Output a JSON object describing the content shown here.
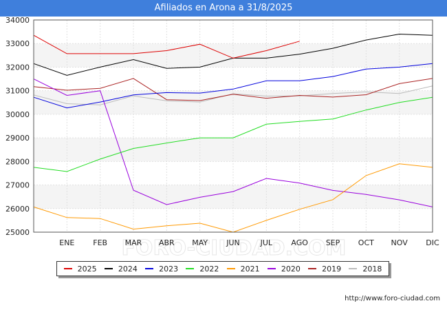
{
  "header": {
    "title": "Afiliados en Arona a 31/8/2025"
  },
  "watermark": "FORO-CIUDAD.COM",
  "footer": {
    "source": "http://www.foro-ciudad.com"
  },
  "chart_data": {
    "type": "line",
    "title": "Afiliados en Arona a 31/8/2025",
    "xlabel": "",
    "ylabel": "",
    "categories": [
      "",
      "ENE",
      "FEB",
      "MAR",
      "ABR",
      "MAY",
      "JUN",
      "JUL",
      "AGO",
      "SEP",
      "OCT",
      "NOV",
      "DIC"
    ],
    "ylim": [
      25000,
      34000
    ],
    "yticks": [
      25000,
      26000,
      27000,
      28000,
      29000,
      30000,
      31000,
      32000,
      33000,
      34000
    ],
    "grid": true,
    "legend_position": "bottom",
    "series": [
      {
        "name": "2025",
        "color": "#dd0000",
        "values": [
          33350,
          32570,
          32570,
          32570,
          32700,
          32970,
          32380,
          32700,
          33100,
          null,
          null,
          null,
          null
        ]
      },
      {
        "name": "2024",
        "color": "#000000",
        "values": [
          32150,
          31650,
          32000,
          32320,
          31950,
          32000,
          32380,
          32380,
          32550,
          32800,
          33150,
          33400,
          33350
        ]
      },
      {
        "name": "2023",
        "color": "#0000dd",
        "values": [
          30720,
          30270,
          30520,
          30820,
          30920,
          30900,
          31070,
          31420,
          31420,
          31600,
          31920,
          32000,
          32150
        ]
      },
      {
        "name": "2022",
        "color": "#22dd22",
        "values": [
          27750,
          27570,
          28100,
          28550,
          28780,
          29000,
          29000,
          29580,
          29700,
          29800,
          30180,
          30500,
          30720
        ]
      },
      {
        "name": "2021",
        "color": "#ff9900",
        "values": [
          26070,
          25620,
          25580,
          25130,
          25270,
          25380,
          25000,
          25500,
          25970,
          26380,
          27400,
          27900,
          27750
        ]
      },
      {
        "name": "2020",
        "color": "#9900dd",
        "values": [
          31500,
          30800,
          31000,
          26780,
          26170,
          26480,
          26720,
          27280,
          27080,
          26770,
          26600,
          26370,
          26070
        ]
      },
      {
        "name": "2019",
        "color": "#aa2222",
        "values": [
          31170,
          31020,
          31100,
          31520,
          30620,
          30580,
          30850,
          30680,
          30800,
          30730,
          30830,
          31300,
          31520
        ]
      },
      {
        "name": "2018",
        "color": "#bbbbbb",
        "values": [
          30820,
          30450,
          30400,
          30780,
          30570,
          30520,
          30870,
          30770,
          30780,
          30880,
          30950,
          30880,
          31200
        ]
      }
    ]
  }
}
